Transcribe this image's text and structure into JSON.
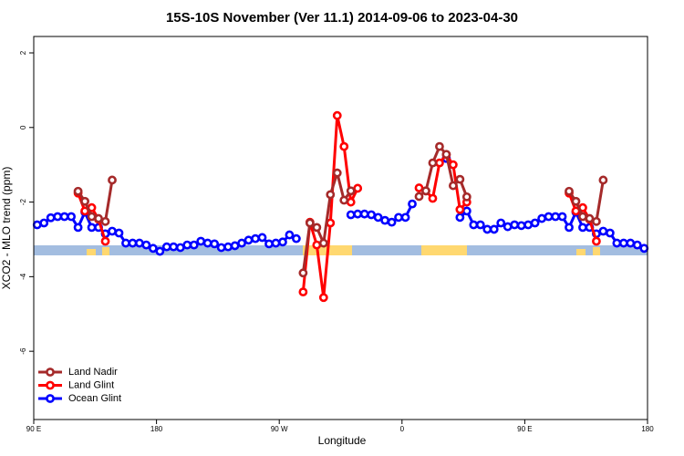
{
  "chart_data": {
    "type": "line",
    "title": "15S-10S November (Ver 11.1)   2014-09-06 to 2023-04-30",
    "x_label": "Longitude",
    "y_label": "XCO2 - MLO trend (ppm)",
    "xlim": [
      90,
      540
    ],
    "ylim": [
      -7.83,
      2.44
    ],
    "xticks": [
      {
        "value": 90,
        "label": "90 E"
      },
      180,
      {
        "value": 270,
        "label": "90 W"
      },
      {
        "value": 360,
        "label": "0"
      },
      {
        "value": 450,
        "label": "90 E"
      },
      {
        "value": 540,
        "label": "180"
      }
    ],
    "yticks": [
      -6,
      -4,
      -2,
      0,
      2
    ],
    "legend": "bottomleft",
    "x": [
      92.5,
      97.5,
      102.5,
      107.5,
      112.5,
      117.5,
      122.5,
      127.5,
      132.5,
      137.5,
      142.5,
      147.5,
      152.5,
      157.5,
      162.5,
      167.5,
      172.5,
      177.5,
      182.5,
      187.5,
      192.5,
      197.5,
      202.5,
      207.5,
      212.5,
      217.5,
      222.5,
      227.5,
      232.5,
      237.5,
      242.5,
      247.5,
      252.5,
      257.5,
      262.5,
      267.5,
      272.5,
      277.5,
      282.5,
      287.5,
      292.5,
      297.5,
      302.5,
      307.5,
      312.5,
      317.5,
      322.5,
      327.5,
      332.5,
      337.5,
      342.5,
      347.5,
      352.5,
      357.5,
      362.5,
      367.5,
      372.5,
      377.5,
      382.5,
      387.5,
      392.5,
      397.5,
      402.5,
      407.5,
      412.5,
      417.5,
      422.5,
      427.5,
      432.5,
      437.5,
      442.5,
      447.5,
      452.5,
      457.5,
      462.5,
      467.5,
      472.5,
      477.5,
      482.5,
      487.5,
      492.5,
      497.5,
      502.5,
      507.5,
      512.5,
      517.5,
      522.5,
      527.5,
      532.5,
      537.5
    ],
    "series": [
      {
        "name": "Land Nadir",
        "color": "#a52a2a",
        "values": [
          null,
          null,
          null,
          null,
          null,
          null,
          -1.71,
          -1.98,
          -2.39,
          -2.44,
          -2.52,
          -1.41,
          null,
          null,
          null,
          null,
          null,
          null,
          null,
          null,
          null,
          null,
          null,
          null,
          null,
          null,
          null,
          null,
          null,
          null,
          null,
          null,
          null,
          null,
          null,
          null,
          null,
          null,
          null,
          -3.9,
          -2.56,
          -2.68,
          -3.1,
          -1.8,
          -1.22,
          -1.95,
          -1.7,
          null,
          null,
          null,
          null,
          null,
          null,
          null,
          null,
          null,
          -1.85,
          -1.7,
          -0.95,
          -0.51,
          -0.72,
          -1.56,
          -1.39,
          -1.86,
          null,
          null,
          null,
          null,
          null,
          null,
          null,
          null,
          null,
          null,
          null,
          null,
          null,
          null,
          -1.71,
          -1.98,
          -2.39,
          -2.44,
          -2.52,
          -1.41,
          null,
          null,
          null,
          null,
          null,
          null
        ]
      },
      {
        "name": "Land Glint",
        "color": "#ff0000",
        "values": [
          null,
          null,
          null,
          null,
          null,
          null,
          -1.76,
          -2.24,
          -2.15,
          -2.46,
          -3.05,
          null,
          null,
          null,
          null,
          null,
          null,
          null,
          null,
          null,
          null,
          null,
          null,
          null,
          null,
          null,
          null,
          null,
          null,
          null,
          null,
          null,
          null,
          null,
          null,
          null,
          null,
          null,
          null,
          -4.41,
          -2.54,
          -3.15,
          -4.56,
          -2.56,
          0.32,
          -0.51,
          -2.0,
          -1.63,
          null,
          null,
          null,
          null,
          null,
          null,
          null,
          null,
          -1.62,
          -1.7,
          -1.9,
          -0.95,
          -0.73,
          -1.0,
          -2.2,
          -2.0,
          null,
          null,
          null,
          null,
          null,
          null,
          null,
          null,
          null,
          null,
          null,
          null,
          null,
          null,
          -1.76,
          -2.24,
          -2.15,
          -2.46,
          -3.05,
          null,
          null,
          null,
          null,
          null,
          null,
          null
        ]
      },
      {
        "name": "Ocean Glint",
        "color": "#0000ff",
        "values": [
          -2.61,
          -2.56,
          -2.42,
          -2.39,
          -2.39,
          -2.39,
          -2.68,
          -2.27,
          -2.68,
          -2.68,
          -2.85,
          -2.78,
          -2.83,
          -3.1,
          -3.1,
          -3.1,
          -3.15,
          -3.24,
          -3.32,
          -3.2,
          -3.2,
          -3.22,
          -3.15,
          -3.15,
          -3.05,
          -3.1,
          -3.12,
          -3.22,
          -3.2,
          -3.17,
          -3.1,
          -3.02,
          -2.98,
          -2.95,
          -3.12,
          -3.1,
          -3.07,
          -2.88,
          -2.98,
          null,
          null,
          null,
          null,
          null,
          null,
          null,
          -2.34,
          -2.32,
          -2.32,
          -2.34,
          -2.41,
          -2.49,
          -2.54,
          -2.41,
          -2.41,
          -2.05,
          null,
          null,
          null,
          null,
          -0.83,
          null,
          -2.41,
          -2.24,
          -2.61,
          -2.61,
          -2.73,
          -2.73,
          -2.56,
          -2.66,
          -2.61,
          -2.63,
          -2.61,
          -2.56,
          -2.44,
          -2.39,
          -2.39,
          -2.39,
          -2.68,
          -2.27,
          -2.68,
          -2.68,
          -2.85,
          -2.78,
          -2.83,
          -3.1,
          -3.1,
          -3.1,
          -3.15,
          -3.24
        ]
      }
    ]
  }
}
